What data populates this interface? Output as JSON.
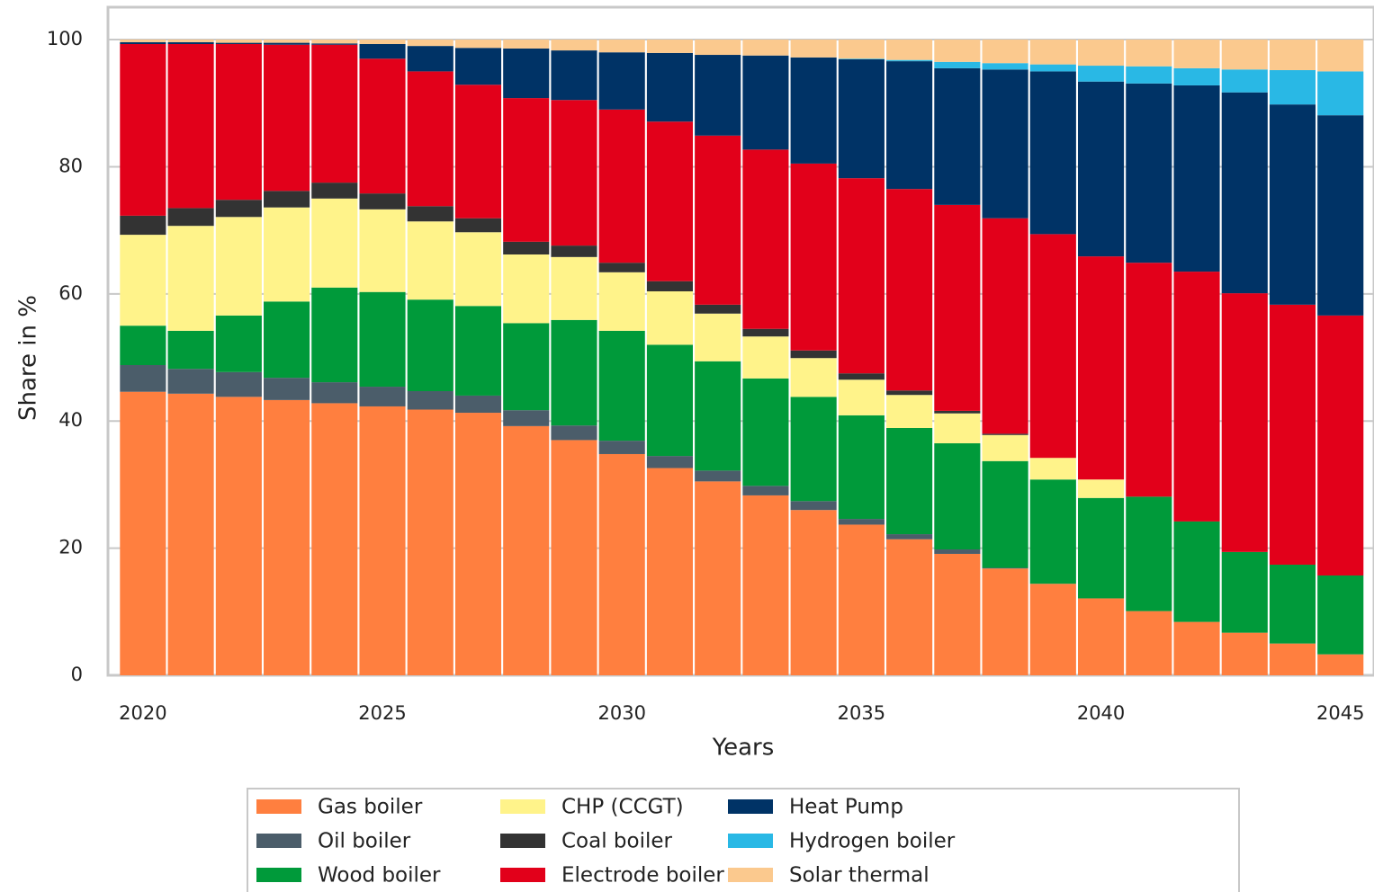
{
  "chart_data": {
    "type": "bar",
    "stacked": true,
    "x_label": "Years",
    "y_label": "Share in %",
    "x": [
      2020,
      2021,
      2022,
      2023,
      2024,
      2025,
      2026,
      2027,
      2028,
      2029,
      2030,
      2031,
      2032,
      2033,
      2034,
      2035,
      2036,
      2037,
      2038,
      2039,
      2040,
      2041,
      2042,
      2043,
      2044,
      2045
    ],
    "xlim": [
      2019.27,
      2045.7
    ],
    "xticks": [
      2020,
      2025,
      2030,
      2035,
      2040,
      2045
    ],
    "ylim": [
      0,
      105.1
    ],
    "yticks": [
      0,
      20,
      40,
      60,
      80,
      100
    ],
    "grid": true,
    "legend": "bottom",
    "series": [
      {
        "name": "Gas boiler",
        "color": "#ff7f3f",
        "values": [
          44.6,
          44.3,
          43.8,
          43.3,
          42.8,
          42.3,
          41.8,
          41.3,
          39.2,
          37.0,
          34.8,
          32.6,
          30.5,
          28.3,
          26.0,
          23.7,
          21.4,
          19.1,
          16.8,
          14.4,
          12.1,
          10.1,
          8.4,
          6.7,
          5.0,
          3.3
        ]
      },
      {
        "name": "Oil boiler",
        "color": "#4b5d6a",
        "values": [
          4.2,
          3.9,
          3.9,
          3.5,
          3.3,
          3.1,
          2.9,
          2.7,
          2.5,
          2.3,
          2.1,
          1.9,
          1.7,
          1.5,
          1.4,
          0.9,
          0.8,
          0.7,
          0.1,
          0,
          0,
          0,
          0,
          0,
          0,
          0
        ]
      },
      {
        "name": "Wood boiler",
        "color": "#009a3a",
        "values": [
          6.2,
          6.0,
          8.9,
          12.0,
          14.9,
          14.9,
          14.4,
          14.1,
          13.7,
          16.6,
          17.3,
          17.5,
          17.2,
          16.9,
          16.4,
          16.3,
          16.7,
          16.7,
          16.8,
          16.4,
          15.8,
          18.0,
          15.8,
          12.7,
          12.4,
          12.4
        ]
      },
      {
        "name": "CHP (CCGT)",
        "color": "#fff38a",
        "values": [
          14.3,
          16.5,
          15.5,
          14.8,
          14.0,
          13.0,
          12.3,
          11.6,
          10.8,
          9.9,
          9.2,
          8.4,
          7.5,
          6.6,
          6.1,
          5.6,
          5.2,
          4.7,
          4.1,
          3.4,
          2.9,
          0,
          0,
          0,
          0,
          0
        ]
      },
      {
        "name": "Coal boiler",
        "color": "#333333",
        "values": [
          3.0,
          2.8,
          2.7,
          2.6,
          2.5,
          2.5,
          2.4,
          2.2,
          2.0,
          1.8,
          1.5,
          1.6,
          1.4,
          1.2,
          1.2,
          1.0,
          0.7,
          0.4,
          0.2,
          0,
          0,
          0,
          0,
          0,
          0,
          0
        ]
      },
      {
        "name": "Electrode boiler",
        "color": "#e2001a",
        "values": [
          27.0,
          25.8,
          24.5,
          23.0,
          21.7,
          21.2,
          21.2,
          21.0,
          22.6,
          22.9,
          24.1,
          25.1,
          26.6,
          28.2,
          29.4,
          30.7,
          31.7,
          32.4,
          33.9,
          35.2,
          35.1,
          36.8,
          39.3,
          40.7,
          40.9,
          40.9
        ]
      },
      {
        "name": "Heat Pump",
        "color": "#003366",
        "values": [
          0.3,
          0.3,
          0.2,
          0.3,
          0.2,
          2.3,
          4.0,
          5.8,
          7.8,
          7.8,
          9.0,
          10.8,
          12.7,
          14.8,
          16.7,
          18.7,
          20.1,
          21.5,
          23.4,
          25.6,
          27.5,
          28.2,
          29.3,
          31.6,
          31.5,
          31.5
        ]
      },
      {
        "name": "Hydrogen boiler",
        "color": "#29b8e5",
        "values": [
          0,
          0,
          0,
          0,
          0,
          0,
          0,
          0,
          0,
          0,
          0,
          0,
          0,
          0,
          0,
          0.1,
          0.2,
          1.0,
          1.0,
          1.1,
          2.5,
          2.7,
          2.7,
          3.6,
          5.4,
          6.9
        ]
      },
      {
        "name": "Solar thermal",
        "color": "#fbc98e",
        "values": [
          0.4,
          0.4,
          0.5,
          0.5,
          0.6,
          0.7,
          1.0,
          1.3,
          1.4,
          1.7,
          2.0,
          2.1,
          2.4,
          2.5,
          2.8,
          3.0,
          3.2,
          3.5,
          3.7,
          3.9,
          4.1,
          4.2,
          4.5,
          4.7,
          4.8,
          5.0
        ]
      }
    ]
  }
}
